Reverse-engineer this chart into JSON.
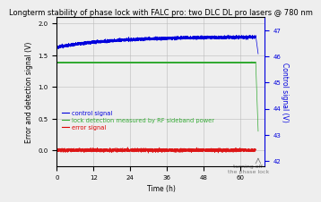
{
  "title": "Longterm stability of phase lock with FALC pro: two DLC DL pro lasers @ 780 nm",
  "xlabel": "Time (h)",
  "ylabel_left": "Error and detection signal (V)",
  "ylabel_right": "Control signal (V)",
  "xlim": [
    0,
    68
  ],
  "ylim_left": [
    -0.25,
    2.1
  ],
  "ylim_right": [
    41.8,
    47.5
  ],
  "xticks": [
    0,
    12,
    24,
    36,
    48,
    60
  ],
  "yticks_left": [
    0.0,
    0.5,
    1.0,
    1.5,
    2.0
  ],
  "yticks_right": [
    42,
    43,
    44,
    45,
    46,
    47
  ],
  "ctrl_y0": 46.35,
  "ctrl_ymax": 46.75,
  "ctrl_tau": 18.0,
  "ctrl_end_x": 65.0,
  "ctrl_drop_y": 46.1,
  "lock_level": 1.385,
  "lock_drop_end_y": 0.3,
  "error_level": 0.0,
  "noise_blue": 0.025,
  "noise_green": 0.003,
  "noise_red": 0.012,
  "color_blue": "#0000dd",
  "color_green": "#33aa33",
  "color_red": "#dd0000",
  "color_grid": "#bbbbbb",
  "background_color": "#eeeeee",
  "legend_control": "control signal",
  "legend_lock": "lock detection measured by RF sideband power",
  "legend_error": "error signal",
  "title_fontsize": 6.0,
  "label_fontsize": 5.5,
  "tick_fontsize": 5.0,
  "legend_fontsize": 4.8,
  "annotation_text": "turning off\nthe phase lock",
  "annotation_fontsize": 4.5
}
